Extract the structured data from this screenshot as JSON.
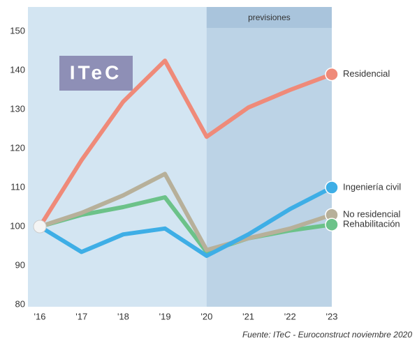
{
  "chart_data": {
    "type": "line",
    "categories": [
      "'16",
      "'17",
      "'18",
      "'19",
      "'20",
      "'21",
      "'22",
      "'23"
    ],
    "series": [
      {
        "name": "Residencial",
        "color": "#ef8a79",
        "values": [
          100,
          117,
          132,
          142.5,
          123,
          130.5,
          135,
          139
        ]
      },
      {
        "name": "Ingeniería civil",
        "color": "#3eaee6",
        "values": [
          100,
          93.5,
          98,
          99.5,
          92.5,
          98,
          104.5,
          110
        ]
      },
      {
        "name": "No residencial",
        "color": "#b7b09a",
        "values": [
          100,
          103.5,
          108,
          113.5,
          94,
          97,
          99.5,
          103
        ]
      },
      {
        "name": "Rehabilitación",
        "color": "#6cc289",
        "values": [
          100,
          103,
          105,
          107.5,
          93.5,
          97,
          99,
          100.5
        ]
      }
    ],
    "ylim": [
      80,
      150
    ],
    "yticks": [
      80,
      90,
      100,
      110,
      120,
      130,
      140,
      150
    ],
    "annotation": "previsiones",
    "logo": "ITeC",
    "source": "Fuente: ITeC - Euroconstruct noviembre 2020"
  }
}
